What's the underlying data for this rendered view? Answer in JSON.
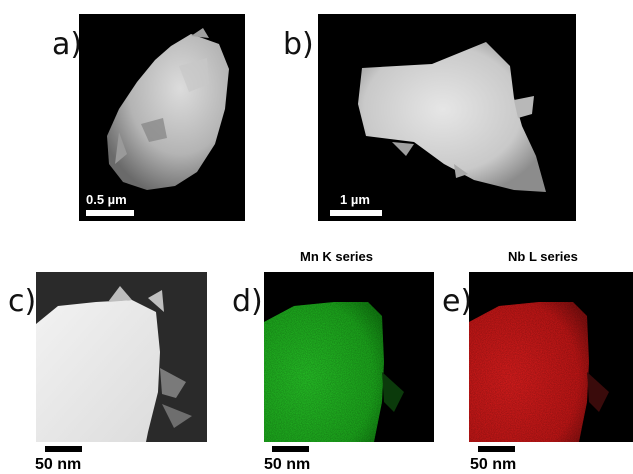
{
  "panels": [
    {
      "letter": "a)",
      "scalebar_label": "0.5 µm"
    },
    {
      "letter": "b)",
      "scalebar_label": "1 µm"
    },
    {
      "letter": "c)",
      "scalebar_label": "50 nm"
    },
    {
      "letter": "d)",
      "scalebar_label": "50 nm",
      "title": "Mn K series",
      "map_color": "#22c522"
    },
    {
      "letter": "e)",
      "scalebar_label": "50 nm",
      "title": "Nb L series",
      "map_color": "#e01818"
    }
  ],
  "colors": {
    "background": "#ffffff",
    "image_background": "#000000",
    "green_map": "#22c522",
    "red_map": "#e01818"
  }
}
